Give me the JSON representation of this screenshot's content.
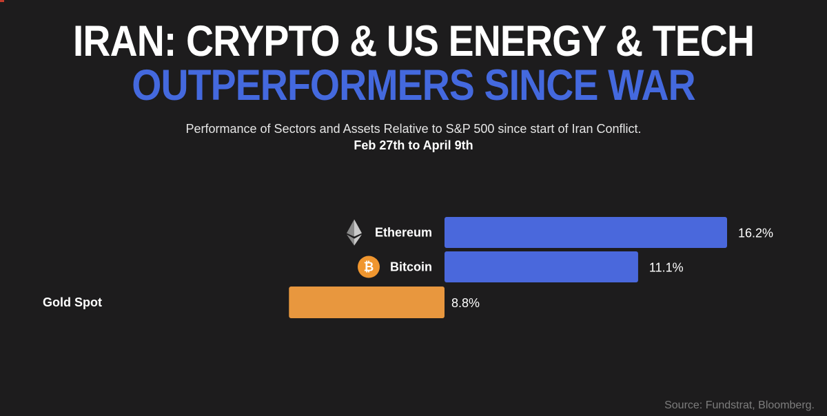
{
  "header": {
    "title_line1": "IRAN: CRYPTO & US ENERGY & TECH",
    "title_line2": "OUTPERFORMERS SINCE WAR",
    "subtitle": "Performance of Sectors and Assets Relative to S&P 500 since start of Iran Conflict.",
    "date_range": "Feb 27th to April 9th"
  },
  "footer": {
    "source": "Source: Fundstrat, Bloomberg."
  },
  "colors": {
    "background": "#1d1c1d",
    "title_white": "#ffffff",
    "title_blue": "#4469de",
    "crypto_bar": "#4a68dc",
    "gold_bar": "#e8973e",
    "bitcoin_badge": "#f0962f"
  },
  "chart_data": {
    "type": "bar",
    "orientation": "horizontal",
    "title": "",
    "categories": [
      "Ethereum",
      "Bitcoin",
      "Gold Spot"
    ],
    "values": [
      16.2,
      11.1,
      8.8
    ],
    "value_labels": [
      "16.2%",
      "11.1%",
      "8.8%"
    ],
    "icons": [
      "ethereum-icon",
      "bitcoin-icon",
      ""
    ],
    "bar_colors": [
      "#4a68dc",
      "#4a68dc",
      "#e8973e"
    ],
    "xlabel": "",
    "ylabel": "",
    "xlim": [
      0,
      16.2
    ],
    "grid": false,
    "legend": "none"
  }
}
